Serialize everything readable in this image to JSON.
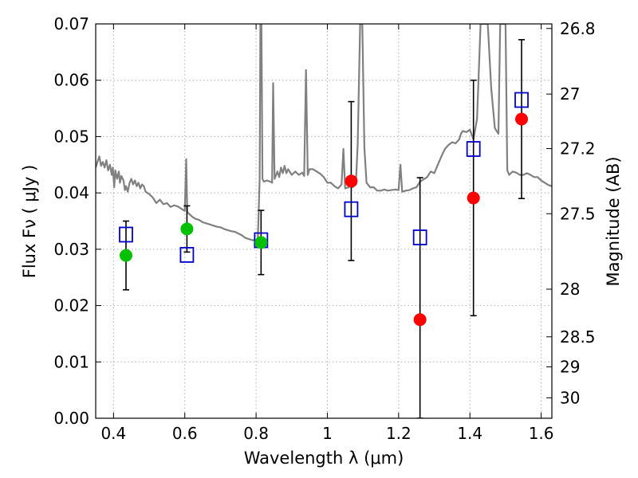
{
  "chart_data": {
    "type": "scatter",
    "title": "",
    "xlabel": "Wavelength  λ (μm)",
    "ylabel": "Flux  Fν  ( μJy )",
    "y2label": "Magnitude (AB)",
    "xlim": [
      0.35,
      1.63
    ],
    "ylim": [
      0.0,
      0.07
    ],
    "grid": true,
    "legend": "none",
    "x_ticks": [
      {
        "value": 0.4,
        "label": "0.4"
      },
      {
        "value": 0.6,
        "label": "0.6"
      },
      {
        "value": 0.8,
        "label": "0.8"
      },
      {
        "value": 1.0,
        "label": "1"
      },
      {
        "value": 1.2,
        "label": "1.2"
      },
      {
        "value": 1.4,
        "label": "1.4"
      },
      {
        "value": 1.6,
        "label": "1.6"
      }
    ],
    "y_ticks": [
      {
        "value": 0.0,
        "label": "0.00"
      },
      {
        "value": 0.01,
        "label": "0.01"
      },
      {
        "value": 0.02,
        "label": "0.02"
      },
      {
        "value": 0.03,
        "label": "0.03"
      },
      {
        "value": 0.04,
        "label": "0.04"
      },
      {
        "value": 0.05,
        "label": "0.05"
      },
      {
        "value": 0.06,
        "label": "0.06"
      },
      {
        "value": 0.07,
        "label": "0.07"
      }
    ],
    "y2_ticks": [
      {
        "value": 26.8,
        "label": "26.8"
      },
      {
        "value": 27.0,
        "label": "27"
      },
      {
        "value": 27.2,
        "label": "27.2"
      },
      {
        "value": 27.5,
        "label": "27.5"
      },
      {
        "value": 28.0,
        "label": "28"
      },
      {
        "value": 28.5,
        "label": "28.5"
      },
      {
        "value": 29.0,
        "label": "29"
      },
      {
        "value": 30.0,
        "label": "30"
      }
    ],
    "colors": {
      "spectrum": "#808080",
      "green_points": "#00c000",
      "red_points": "#ff0000",
      "model_squares": "#0000cc",
      "errorbar": "#000000",
      "grid": "#b0b0b0"
    },
    "spectrum": [
      [
        0.35,
        0.0445
      ],
      [
        0.36,
        0.0465
      ],
      [
        0.365,
        0.0448
      ],
      [
        0.37,
        0.0455
      ],
      [
        0.375,
        0.0445
      ],
      [
        0.38,
        0.0458
      ],
      [
        0.385,
        0.044
      ],
      [
        0.39,
        0.045
      ],
      [
        0.395,
        0.0432
      ],
      [
        0.398,
        0.0445
      ],
      [
        0.402,
        0.041
      ],
      [
        0.405,
        0.044
      ],
      [
        0.41,
        0.0425
      ],
      [
        0.415,
        0.0438
      ],
      [
        0.418,
        0.0418
      ],
      [
        0.422,
        0.043
      ],
      [
        0.428,
        0.0422
      ],
      [
        0.432,
        0.0405
      ],
      [
        0.435,
        0.0412
      ],
      [
        0.44,
        0.0402
      ],
      [
        0.445,
        0.0418
      ],
      [
        0.45,
        0.0425
      ],
      [
        0.455,
        0.0415
      ],
      [
        0.46,
        0.0422
      ],
      [
        0.465,
        0.0412
      ],
      [
        0.47,
        0.0418
      ],
      [
        0.475,
        0.0408
      ],
      [
        0.48,
        0.0415
      ],
      [
        0.485,
        0.0412
      ],
      [
        0.49,
        0.0402
      ],
      [
        0.5,
        0.0398
      ],
      [
        0.51,
        0.0392
      ],
      [
        0.52,
        0.0382
      ],
      [
        0.53,
        0.0388
      ],
      [
        0.54,
        0.038
      ],
      [
        0.55,
        0.0382
      ],
      [
        0.56,
        0.0375
      ],
      [
        0.57,
        0.0378
      ],
      [
        0.58,
        0.0376
      ],
      [
        0.59,
        0.0372
      ],
      [
        0.6,
        0.0368
      ],
      [
        0.604,
        0.046
      ],
      [
        0.607,
        0.0366
      ],
      [
        0.61,
        0.0364
      ],
      [
        0.62,
        0.0358
      ],
      [
        0.63,
        0.0354
      ],
      [
        0.64,
        0.0352
      ],
      [
        0.65,
        0.0348
      ],
      [
        0.66,
        0.0346
      ],
      [
        0.67,
        0.0344
      ],
      [
        0.68,
        0.0342
      ],
      [
        0.69,
        0.034
      ],
      [
        0.7,
        0.0339
      ],
      [
        0.71,
        0.0336
      ],
      [
        0.72,
        0.0334
      ],
      [
        0.73,
        0.0332
      ],
      [
        0.74,
        0.0331
      ],
      [
        0.75,
        0.0328
      ],
      [
        0.76,
        0.0325
      ],
      [
        0.77,
        0.032
      ],
      [
        0.78,
        0.0318
      ],
      [
        0.79,
        0.0316
      ],
      [
        0.8,
        0.0316
      ],
      [
        0.805,
        0.0318
      ],
      [
        0.81,
        0.0425
      ],
      [
        0.812,
        0.07
      ],
      [
        0.815,
        0.07
      ],
      [
        0.818,
        0.0425
      ],
      [
        0.822,
        0.042
      ],
      [
        0.83,
        0.0422
      ],
      [
        0.84,
        0.042
      ],
      [
        0.845,
        0.0418
      ],
      [
        0.848,
        0.0595
      ],
      [
        0.852,
        0.0425
      ],
      [
        0.86,
        0.0438
      ],
      [
        0.865,
        0.0428
      ],
      [
        0.87,
        0.0445
      ],
      [
        0.875,
        0.0435
      ],
      [
        0.88,
        0.0448
      ],
      [
        0.885,
        0.0435
      ],
      [
        0.89,
        0.0442
      ],
      [
        0.9,
        0.0432
      ],
      [
        0.91,
        0.0438
      ],
      [
        0.92,
        0.0432
      ],
      [
        0.93,
        0.0436
      ],
      [
        0.935,
        0.043
      ],
      [
        0.94,
        0.0618
      ],
      [
        0.945,
        0.0432
      ],
      [
        0.95,
        0.0442
      ],
      [
        0.96,
        0.0442
      ],
      [
        0.97,
        0.0438
      ],
      [
        0.98,
        0.0434
      ],
      [
        0.99,
        0.0428
      ],
      [
        1.0,
        0.0418
      ],
      [
        1.01,
        0.0418
      ],
      [
        1.02,
        0.0412
      ],
      [
        1.03,
        0.0408
      ],
      [
        1.04,
        0.0415
      ],
      [
        1.045,
        0.0478
      ],
      [
        1.05,
        0.0408
      ],
      [
        1.06,
        0.041
      ],
      [
        1.065,
        0.0418
      ],
      [
        1.07,
        0.041
      ],
      [
        1.08,
        0.0415
      ],
      [
        1.085,
        0.0485
      ],
      [
        1.092,
        0.07
      ],
      [
        1.098,
        0.07
      ],
      [
        1.104,
        0.048
      ],
      [
        1.11,
        0.0418
      ],
      [
        1.12,
        0.041
      ],
      [
        1.13,
        0.041
      ],
      [
        1.14,
        0.0404
      ],
      [
        1.15,
        0.0404
      ],
      [
        1.16,
        0.0406
      ],
      [
        1.17,
        0.0404
      ],
      [
        1.18,
        0.0405
      ],
      [
        1.19,
        0.0406
      ],
      [
        1.2,
        0.0405
      ],
      [
        1.205,
        0.045
      ],
      [
        1.21,
        0.0402
      ],
      [
        1.22,
        0.0404
      ],
      [
        1.23,
        0.0405
      ],
      [
        1.24,
        0.0408
      ],
      [
        1.25,
        0.041
      ],
      [
        1.26,
        0.042
      ],
      [
        1.27,
        0.0424
      ],
      [
        1.28,
        0.0428
      ],
      [
        1.29,
        0.0438
      ],
      [
        1.3,
        0.0435
      ],
      [
        1.31,
        0.045
      ],
      [
        1.32,
        0.0465
      ],
      [
        1.33,
        0.0478
      ],
      [
        1.34,
        0.0485
      ],
      [
        1.35,
        0.049
      ],
      [
        1.36,
        0.0488
      ],
      [
        1.37,
        0.0495
      ],
      [
        1.375,
        0.0505
      ],
      [
        1.38,
        0.051
      ],
      [
        1.39,
        0.0508
      ],
      [
        1.4,
        0.0512
      ],
      [
        1.41,
        0.0495
      ],
      [
        1.42,
        0.0532
      ],
      [
        1.43,
        0.07
      ],
      [
        1.45,
        0.07
      ],
      [
        1.46,
        0.0585
      ],
      [
        1.47,
        0.0515
      ],
      [
        1.48,
        0.0505
      ],
      [
        1.485,
        0.07
      ],
      [
        1.5,
        0.07
      ],
      [
        1.505,
        0.044
      ],
      [
        1.51,
        0.0432
      ],
      [
        1.52,
        0.0438
      ],
      [
        1.53,
        0.0436
      ],
      [
        1.54,
        0.0432
      ],
      [
        1.55,
        0.0432
      ],
      [
        1.56,
        0.0435
      ],
      [
        1.57,
        0.0432
      ],
      [
        1.58,
        0.0428
      ],
      [
        1.59,
        0.0428
      ],
      [
        1.6,
        0.0422
      ],
      [
        1.61,
        0.0418
      ],
      [
        1.62,
        0.0414
      ],
      [
        1.63,
        0.0412
      ]
    ],
    "observed_points": [
      {
        "x": 0.435,
        "y": 0.0289,
        "err_low": 0.0061,
        "err_high": 0.0061,
        "color": "green"
      },
      {
        "x": 0.606,
        "y": 0.0336,
        "err_low": 0.0041,
        "err_high": 0.0041,
        "color": "green"
      },
      {
        "x": 0.814,
        "y": 0.0312,
        "err_low": 0.0057,
        "err_high": 0.0057,
        "color": "green"
      },
      {
        "x": 1.067,
        "y": 0.0421,
        "err_low": 0.0141,
        "err_high": 0.0141,
        "color": "red"
      },
      {
        "x": 1.26,
        "y": 0.0175,
        "err_low": 0.0175,
        "err_high": 0.0252,
        "color": "red"
      },
      {
        "x": 1.41,
        "y": 0.0391,
        "err_low": 0.0209,
        "err_high": 0.0209,
        "color": "red"
      },
      {
        "x": 1.545,
        "y": 0.0531,
        "err_low": 0.0141,
        "err_high": 0.0141,
        "color": "red"
      }
    ],
    "model_points": [
      {
        "x": 0.435,
        "y": 0.0326
      },
      {
        "x": 0.606,
        "y": 0.029
      },
      {
        "x": 0.814,
        "y": 0.0316
      },
      {
        "x": 1.067,
        "y": 0.0371
      },
      {
        "x": 1.26,
        "y": 0.0321
      },
      {
        "x": 1.41,
        "y": 0.0478
      },
      {
        "x": 1.545,
        "y": 0.0565
      }
    ]
  }
}
